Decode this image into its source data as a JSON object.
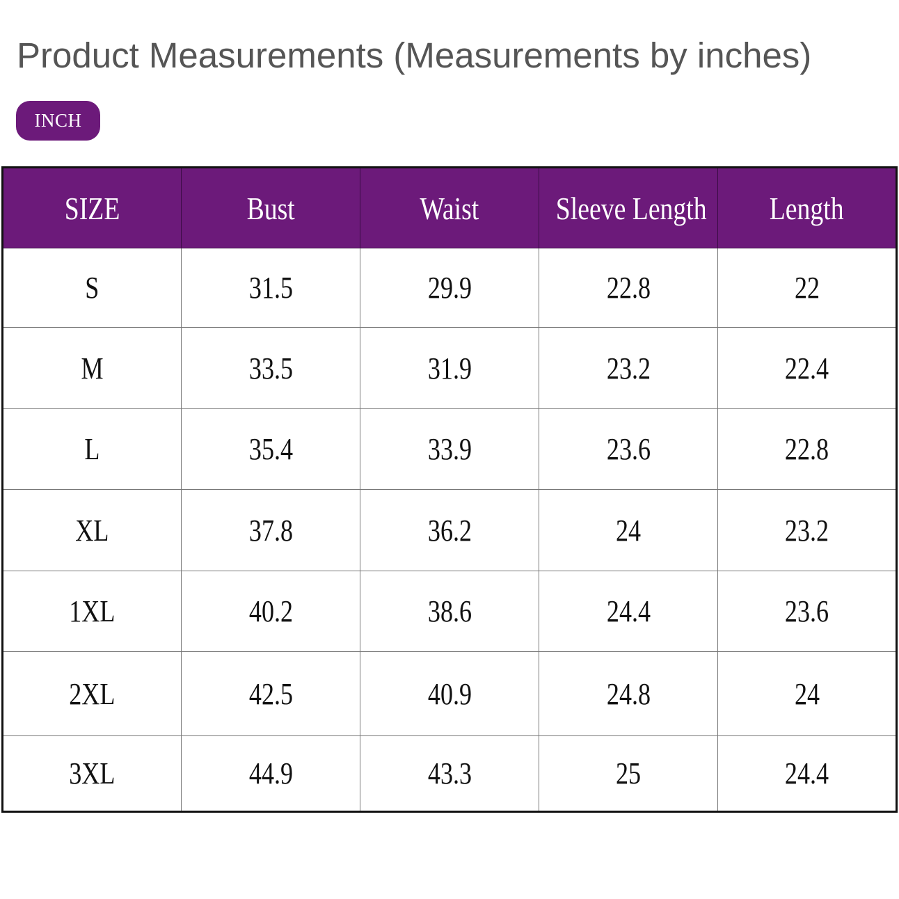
{
  "title": "Product Measurements (Measurements by inches)",
  "unit_badge": "INCH",
  "accent_color": "#6c1a7a",
  "table": {
    "headers": [
      "SIZE",
      "Bust",
      "Waist",
      "Sleeve Length",
      "Length"
    ],
    "rows": [
      [
        "S",
        "31.5",
        "29.9",
        "22.8",
        "22"
      ],
      [
        "M",
        "33.5",
        "31.9",
        "23.2",
        "22.4"
      ],
      [
        "L",
        "35.4",
        "33.9",
        "23.6",
        "22.8"
      ],
      [
        "XL",
        "37.8",
        "36.2",
        "24",
        "23.2"
      ],
      [
        "1XL",
        "40.2",
        "38.6",
        "24.4",
        "23.6"
      ],
      [
        "2XL",
        "42.5",
        "40.9",
        "24.8",
        "24"
      ],
      [
        "3XL",
        "44.9",
        "43.3",
        "25",
        "24.4"
      ]
    ]
  }
}
